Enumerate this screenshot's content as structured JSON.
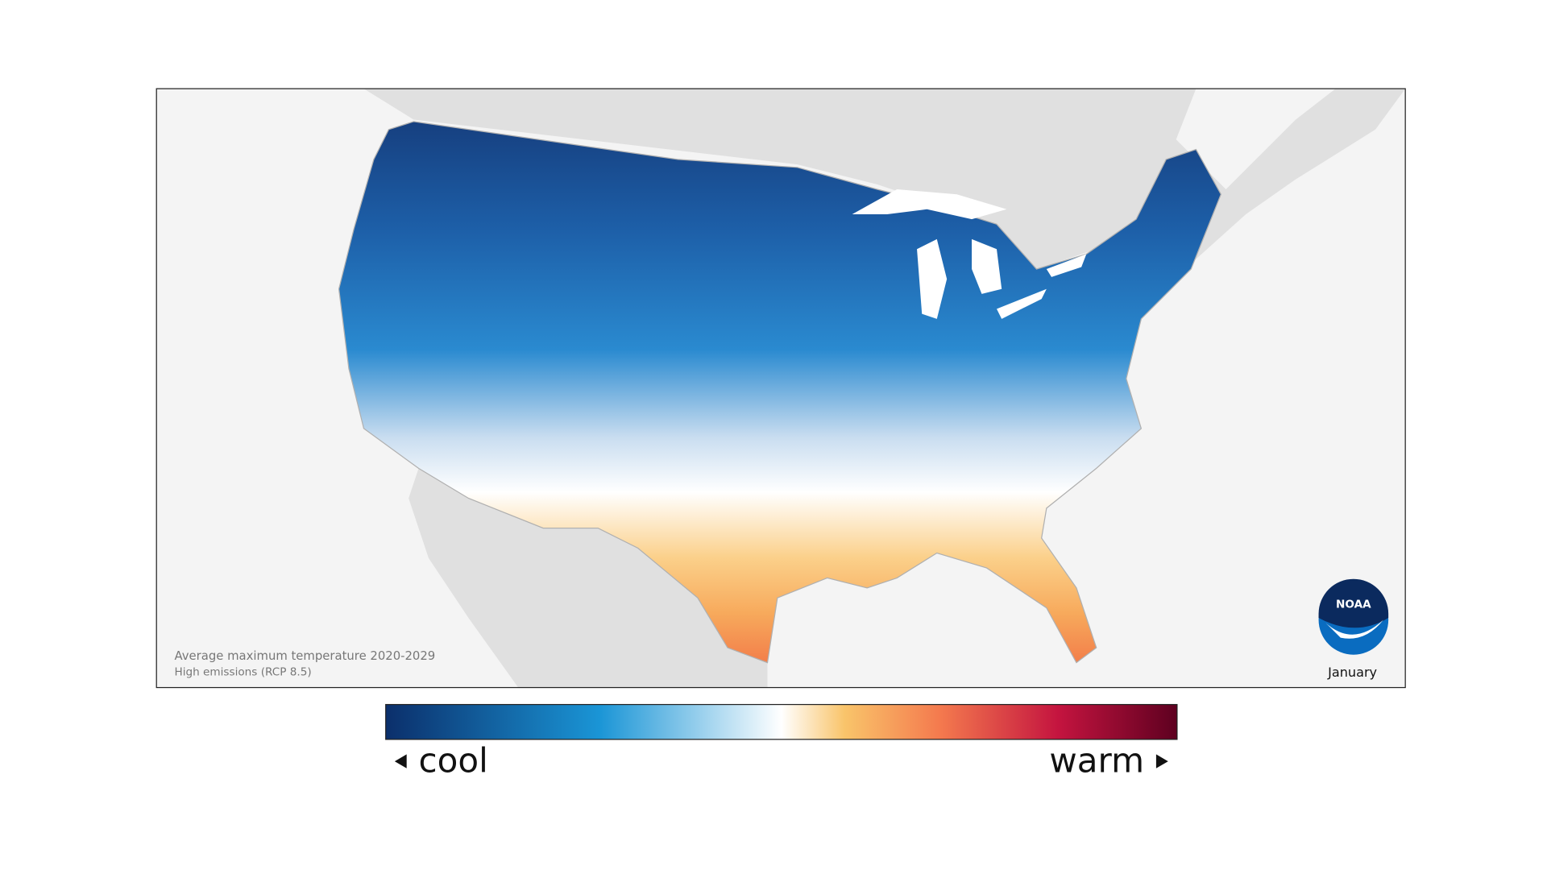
{
  "map": {
    "caption": {
      "title": "Average maximum temperature 2020-2029",
      "subtitle": "High emissions (RCP 8.5)"
    },
    "logo": "NOAA",
    "month": "January",
    "legend": {
      "low": "cool",
      "high": "warm"
    }
  }
}
